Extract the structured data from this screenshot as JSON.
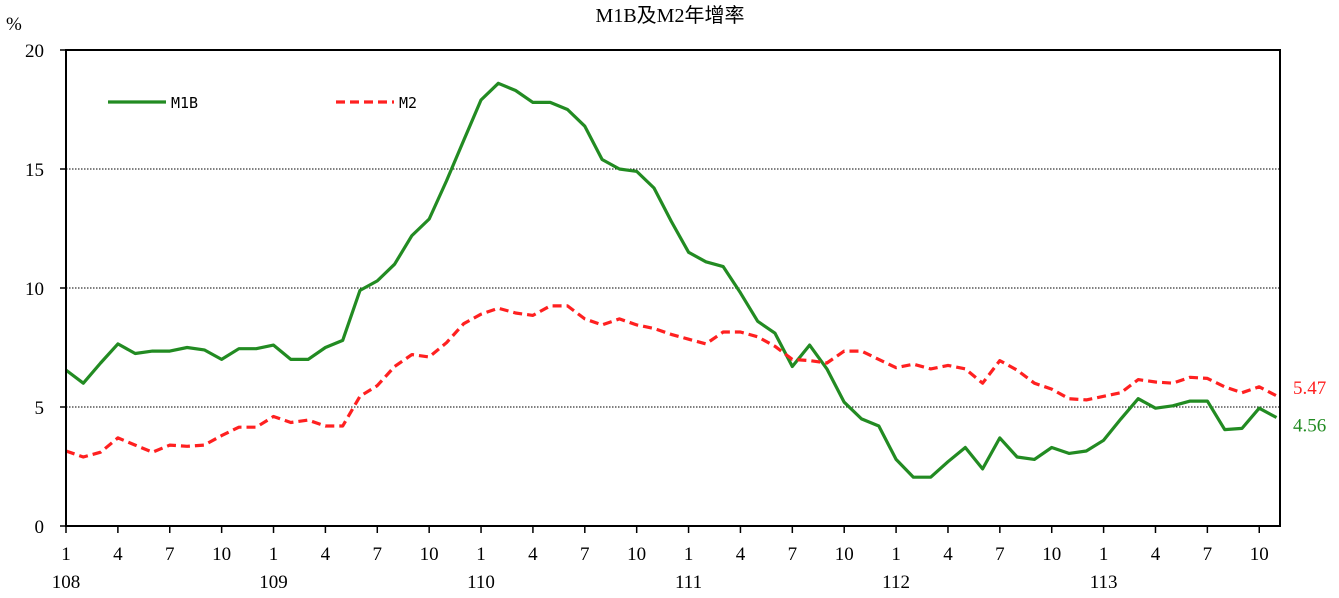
{
  "chart_data": {
    "type": "line",
    "title": "M1B及M2年增率",
    "ylabel": "%",
    "ylim": [
      0,
      20
    ],
    "yticks": [
      "0",
      "5",
      "10",
      "15",
      "20"
    ],
    "grid": "horizontal dotted at 5, 10, 15",
    "legend_position": "top-left",
    "x_month_ticks": [
      "1",
      "4",
      "7",
      "10",
      "1",
      "4",
      "7",
      "10",
      "1",
      "4",
      "7",
      "10",
      "1",
      "4",
      "7",
      "10",
      "1",
      "4",
      "7",
      "10",
      "1",
      "4",
      "7",
      "10"
    ],
    "x_year_ticks": [
      "108",
      "109",
      "110",
      "111",
      "112",
      "113"
    ],
    "series": [
      {
        "name": "M1B",
        "color": "#228B22",
        "style": "solid",
        "end_label": "4.56",
        "values": [
          6.55,
          6.0,
          6.85,
          7.65,
          7.25,
          7.35,
          7.35,
          7.5,
          7.4,
          7.0,
          7.45,
          7.45,
          7.6,
          7.0,
          7.0,
          7.5,
          7.8,
          9.9,
          10.3,
          11.0,
          12.2,
          12.9,
          14.5,
          16.2,
          17.9,
          18.6,
          18.3,
          17.8,
          17.8,
          17.5,
          16.8,
          15.4,
          15.0,
          14.9,
          14.2,
          12.8,
          11.5,
          11.1,
          10.9,
          9.8,
          8.6,
          8.1,
          6.7,
          7.6,
          6.6,
          5.2,
          4.5,
          4.2,
          2.8,
          2.05,
          2.05,
          2.7,
          3.3,
          2.4,
          3.7,
          2.9,
          2.8,
          3.3,
          3.05,
          3.15,
          3.6,
          4.5,
          5.35,
          4.95,
          5.05,
          5.25,
          5.25,
          4.05,
          4.1,
          4.95,
          4.56
        ]
      },
      {
        "name": "M2",
        "color": "#FF2020",
        "style": "dashed",
        "end_label": "5.47",
        "values": [
          3.15,
          2.9,
          3.1,
          3.7,
          3.4,
          3.1,
          3.4,
          3.35,
          3.4,
          3.8,
          4.15,
          4.15,
          4.6,
          4.35,
          4.45,
          4.2,
          4.2,
          5.45,
          5.9,
          6.7,
          7.2,
          7.1,
          7.7,
          8.5,
          8.9,
          9.15,
          8.95,
          8.85,
          9.25,
          9.25,
          8.7,
          8.45,
          8.7,
          8.45,
          8.3,
          8.05,
          7.85,
          7.65,
          8.15,
          8.15,
          7.95,
          7.55,
          7.0,
          6.95,
          6.85,
          7.35,
          7.35,
          7.0,
          6.65,
          6.8,
          6.6,
          6.75,
          6.6,
          6.0,
          6.95,
          6.55,
          6.0,
          5.75,
          5.35,
          5.3,
          5.45,
          5.6,
          6.15,
          6.05,
          6.0,
          6.25,
          6.2,
          5.85,
          5.6,
          5.85,
          5.47
        ]
      }
    ]
  }
}
